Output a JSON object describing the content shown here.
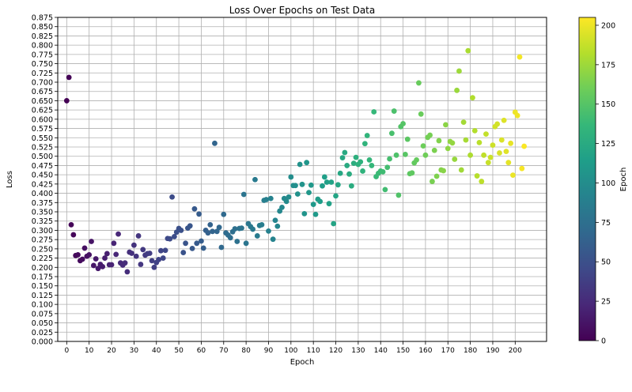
{
  "chart_data": {
    "type": "scatter",
    "title": "Loss Over Epochs on Test Data",
    "xlabel": "Epoch",
    "ylabel": "Loss",
    "xlim": [
      -4,
      214
    ],
    "ylim": [
      0,
      0.875
    ],
    "grid": true,
    "x_ticks": [
      0,
      10,
      20,
      30,
      40,
      50,
      60,
      70,
      80,
      90,
      100,
      110,
      120,
      130,
      140,
      150,
      160,
      170,
      180,
      190,
      200
    ],
    "y_ticks": [
      0.0,
      0.025,
      0.05,
      0.075,
      0.1,
      0.125,
      0.15,
      0.175,
      0.2,
      0.225,
      0.25,
      0.275,
      0.3,
      0.325,
      0.35,
      0.375,
      0.4,
      0.425,
      0.45,
      0.475,
      0.5,
      0.525,
      0.55,
      0.575,
      0.6,
      0.625,
      0.65,
      0.675,
      0.7,
      0.725,
      0.75,
      0.775,
      0.8,
      0.825,
      0.85,
      0.875
    ],
    "colorbar": {
      "label": "Epoch",
      "colormap": "viridis",
      "range": [
        0,
        205
      ],
      "ticks": [
        0,
        25,
        50,
        75,
        100,
        125,
        150,
        175,
        200
      ]
    },
    "x": [
      0,
      1,
      2,
      3,
      4,
      5,
      6,
      7,
      8,
      9,
      10,
      11,
      12,
      13,
      14,
      15,
      16,
      17,
      18,
      19,
      20,
      21,
      22,
      23,
      24,
      25,
      26,
      27,
      28,
      29,
      30,
      31,
      32,
      33,
      34,
      35,
      36,
      37,
      38,
      39,
      40,
      41,
      42,
      43,
      44,
      45,
      46,
      47,
      48,
      49,
      50,
      51,
      52,
      53,
      54,
      55,
      56,
      57,
      58,
      59,
      60,
      61,
      62,
      63,
      64,
      65,
      66,
      67,
      68,
      69,
      70,
      71,
      72,
      73,
      74,
      75,
      76,
      77,
      78,
      79,
      80,
      81,
      82,
      83,
      84,
      85,
      86,
      87,
      88,
      89,
      90,
      91,
      92,
      93,
      94,
      95,
      96,
      97,
      98,
      99,
      100,
      101,
      102,
      103,
      104,
      105,
      106,
      107,
      108,
      109,
      110,
      111,
      112,
      113,
      114,
      115,
      116,
      117,
      118,
      119,
      120,
      121,
      122,
      123,
      124,
      125,
      126,
      127,
      128,
      129,
      130,
      131,
      132,
      133,
      134,
      135,
      136,
      137,
      138,
      139,
      140,
      141,
      142,
      143,
      144,
      145,
      146,
      147,
      148,
      149,
      150,
      151,
      152,
      153,
      154,
      155,
      156,
      157,
      158,
      159,
      160,
      161,
      162,
      163,
      164,
      165,
      166,
      167,
      168,
      169,
      170,
      171,
      172,
      173,
      174,
      175,
      176,
      177,
      178,
      179,
      180,
      181,
      182,
      183,
      184,
      185,
      186,
      187,
      188,
      189,
      190,
      191,
      192,
      193,
      194,
      195,
      196,
      197,
      198,
      199,
      200,
      201,
      202,
      203,
      204
    ],
    "y": [
      0.65,
      0.713,
      0.315,
      0.288,
      0.232,
      0.234,
      0.218,
      0.222,
      0.252,
      0.23,
      0.234,
      0.27,
      0.205,
      0.223,
      0.197,
      0.208,
      0.202,
      0.225,
      0.237,
      0.207,
      0.207,
      0.265,
      0.235,
      0.29,
      0.212,
      0.206,
      0.212,
      0.188,
      0.241,
      0.238,
      0.26,
      0.23,
      0.285,
      0.208,
      0.248,
      0.233,
      0.237,
      0.238,
      0.218,
      0.2,
      0.213,
      0.221,
      0.245,
      0.225,
      0.246,
      0.278,
      0.277,
      0.39,
      0.283,
      0.295,
      0.305,
      0.3,
      0.24,
      0.265,
      0.306,
      0.312,
      0.251,
      0.358,
      0.265,
      0.344,
      0.271,
      0.252,
      0.3,
      0.293,
      0.315,
      0.297,
      0.535,
      0.297,
      0.308,
      0.254,
      0.343,
      0.293,
      0.287,
      0.28,
      0.296,
      0.304,
      0.27,
      0.305,
      0.306,
      0.397,
      0.265,
      0.318,
      0.31,
      0.303,
      0.437,
      0.285,
      0.313,
      0.315,
      0.381,
      0.383,
      0.298,
      0.386,
      0.276,
      0.327,
      0.311,
      0.352,
      0.362,
      0.386,
      0.378,
      0.39,
      0.444,
      0.421,
      0.421,
      0.398,
      0.478,
      0.424,
      0.345,
      0.483,
      0.402,
      0.422,
      0.37,
      0.343,
      0.384,
      0.378,
      0.42,
      0.444,
      0.43,
      0.372,
      0.43,
      0.318,
      0.393,
      0.423,
      0.454,
      0.496,
      0.51,
      0.475,
      0.452,
      0.42,
      0.481,
      0.497,
      0.478,
      0.485,
      0.46,
      0.534,
      0.556,
      0.49,
      0.475,
      0.62,
      0.445,
      0.454,
      0.46,
      0.458,
      0.41,
      0.47,
      0.493,
      0.562,
      0.622,
      0.503,
      0.395,
      0.58,
      0.588,
      0.505,
      0.546,
      0.453,
      0.455,
      0.482,
      0.49,
      0.698,
      0.614,
      0.528,
      0.503,
      0.551,
      0.557,
      0.432,
      0.516,
      0.446,
      0.542,
      0.463,
      0.461,
      0.585,
      0.521,
      0.54,
      0.536,
      0.492,
      0.678,
      0.73,
      0.463,
      0.592,
      0.544,
      0.785,
      0.503,
      0.658,
      0.569,
      0.447,
      0.537,
      0.432,
      0.503,
      0.56,
      0.483,
      0.497,
      0.53,
      0.58,
      0.587,
      0.509,
      0.544,
      0.597,
      0.513,
      0.483,
      0.535,
      0.449,
      0.619,
      0.61,
      0.768,
      0.467,
      0.527
    ]
  }
}
